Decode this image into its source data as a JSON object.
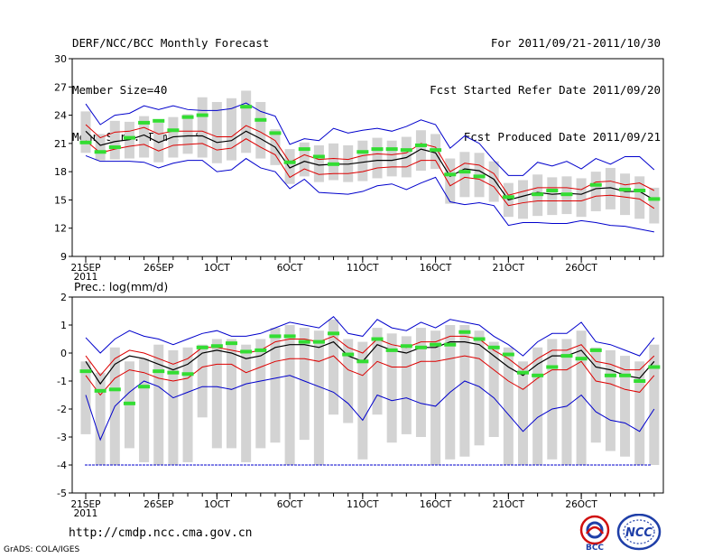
{
  "header": {
    "title": "DERF/NCC/BCC Monthly Forecast",
    "member_size": "Member Size=40",
    "variable": "Mean Surf. Temp.: °C",
    "forecast_period": "For 2011/09/21-2011/10/30",
    "started_refer_date": "Fcst Started Refer Date 2011/09/20",
    "produced_date": "Fcst Produced Date 2011/09/21"
  },
  "footer": {
    "url": "http://cmdp.ncc.cma.gov.cn",
    "grads_credit": "GrADS: COLA/IGES",
    "logo_left_text": "BCC",
    "logo_right_text": "NCC"
  },
  "colors": {
    "ensemble_max": "#0000cc",
    "ensemble_spread": "#dd0000",
    "ensemble_mean": "#000000",
    "observed": "#33dd33",
    "box": "#d3d3d3",
    "floor_line": "#0000cc"
  },
  "chart_data": [
    {
      "type": "line",
      "title": "Mean Surf. Temp.: °C",
      "ylabel": "°C",
      "ylim": [
        9,
        30
      ],
      "yticks": [
        9,
        12,
        15,
        18,
        21,
        24,
        27,
        30
      ],
      "xticks": [
        {
          "day": 1,
          "label": "21SEP",
          "sub": "2011"
        },
        {
          "day": 6,
          "label": "26SEP"
        },
        {
          "day": 10,
          "label": "1OCT"
        },
        {
          "day": 15,
          "label": "6OCT"
        },
        {
          "day": 20,
          "label": "11OCT"
        },
        {
          "day": 25,
          "label": "16OCT"
        },
        {
          "day": 30,
          "label": "21OCT"
        },
        {
          "day": 35,
          "label": "26OCT"
        }
      ],
      "days": [
        1,
        2,
        3,
        4,
        5,
        6,
        7,
        8,
        9,
        10,
        11,
        12,
        13,
        14,
        15,
        16,
        17,
        18,
        19,
        20,
        21,
        22,
        23,
        24,
        25,
        26,
        27,
        28,
        29,
        30,
        31,
        32,
        33,
        34,
        35,
        36,
        37,
        38,
        39,
        40
      ],
      "series": [
        {
          "name": "ensemble max",
          "role": "max",
          "values": [
            25.2,
            23.0,
            24.0,
            24.2,
            25.0,
            24.6,
            25.0,
            24.6,
            24.5,
            24.5,
            24.7,
            25.3,
            24.4,
            23.9,
            20.9,
            21.5,
            21.3,
            22.6,
            22.1,
            22.4,
            22.6,
            22.3,
            22.8,
            23.5,
            23.0,
            20.5,
            21.8,
            21.0,
            19.2,
            17.6,
            17.6,
            19.0,
            18.6,
            19.1,
            18.3,
            19.4,
            18.8,
            19.6,
            19.6,
            18.2
          ]
        },
        {
          "name": "upper spread",
          "role": "upper",
          "values": [
            23.0,
            21.6,
            22.2,
            22.3,
            22.7,
            22.0,
            22.3,
            22.3,
            22.3,
            21.7,
            21.7,
            22.9,
            22.2,
            21.3,
            19.0,
            19.8,
            19.3,
            19.4,
            19.3,
            19.7,
            19.9,
            19.8,
            20.0,
            21.0,
            20.6,
            18.0,
            18.9,
            18.7,
            17.8,
            15.5,
            15.9,
            16.3,
            16.3,
            16.3,
            16.1,
            16.9,
            17.0,
            16.6,
            16.8,
            16.0
          ]
        },
        {
          "name": "ensemble mean",
          "role": "mean",
          "values": [
            22.3,
            20.8,
            21.2,
            21.4,
            21.9,
            21.1,
            21.7,
            21.8,
            21.8,
            21.1,
            21.3,
            22.3,
            21.5,
            20.6,
            18.4,
            19.1,
            18.7,
            18.8,
            18.8,
            19.0,
            19.2,
            19.2,
            19.5,
            20.4,
            20.0,
            17.5,
            18.3,
            18.1,
            17.2,
            15.0,
            15.4,
            15.8,
            15.6,
            15.7,
            15.6,
            16.2,
            16.3,
            15.9,
            15.9,
            15.0
          ]
        },
        {
          "name": "lower spread",
          "role": "lower",
          "values": [
            21.3,
            20.0,
            20.4,
            20.7,
            20.9,
            20.2,
            20.8,
            20.9,
            21.0,
            20.3,
            20.5,
            21.5,
            20.6,
            19.8,
            17.4,
            18.3,
            17.7,
            17.8,
            17.8,
            18.0,
            18.4,
            18.5,
            18.5,
            19.2,
            19.2,
            16.5,
            17.4,
            17.2,
            16.4,
            14.4,
            14.7,
            14.9,
            14.9,
            14.9,
            14.9,
            15.4,
            15.5,
            15.3,
            15.1,
            14.1
          ]
        },
        {
          "name": "ensemble min",
          "role": "min",
          "values": [
            19.7,
            19.1,
            19.1,
            19.1,
            19.0,
            18.4,
            18.9,
            19.2,
            19.2,
            18.0,
            18.2,
            19.4,
            18.4,
            18.0,
            16.2,
            17.2,
            15.8,
            15.7,
            15.6,
            15.9,
            16.5,
            16.7,
            16.1,
            16.8,
            17.4,
            14.8,
            14.5,
            14.7,
            14.4,
            12.3,
            12.6,
            12.6,
            12.5,
            12.5,
            12.8,
            12.6,
            12.3,
            12.2,
            11.9,
            11.6
          ]
        }
      ],
      "boxes": {
        "lo": [
          20.0,
          19.2,
          19.3,
          19.4,
          19.5,
          19.0,
          19.5,
          19.9,
          19.5,
          18.9,
          19.2,
          20.0,
          19.4,
          18.7,
          16.7,
          17.5,
          16.9,
          17.1,
          16.9,
          17.0,
          17.3,
          17.5,
          17.4,
          18.1,
          18.3,
          14.6,
          15.3,
          15.3,
          14.8,
          13.2,
          13.0,
          13.3,
          13.4,
          13.5,
          13.2,
          13.8,
          14.0,
          13.4,
          13.0,
          12.5
        ],
        "hi": [
          24.4,
          22.0,
          23.4,
          23.3,
          23.9,
          23.2,
          23.8,
          24.1,
          25.9,
          25.4,
          25.8,
          26.6,
          25.4,
          22.5,
          20.4,
          21.1,
          20.8,
          21.0,
          20.8,
          21.3,
          21.6,
          21.3,
          21.7,
          22.4,
          22.0,
          19.4,
          20.1,
          20.0,
          19.1,
          16.8,
          17.1,
          17.7,
          17.4,
          17.5,
          17.3,
          18.0,
          18.4,
          17.8,
          17.5,
          16.3
        ]
      },
      "observed": [
        21.1,
        20.1,
        20.6,
        21.6,
        23.2,
        23.4,
        22.4,
        23.8,
        24.0,
        null,
        null,
        24.9,
        23.5,
        22.1,
        19.0,
        20.4,
        19.6,
        18.8,
        null,
        20.1,
        20.4,
        20.4,
        20.3,
        20.8,
        20.3,
        17.7,
        18.0,
        17.5,
        null,
        15.3,
        null,
        15.6,
        16.0,
        15.6,
        null,
        16.6,
        null,
        16.1,
        16.0,
        15.1
      ]
    },
    {
      "type": "line",
      "title": "Prec.: log(mm/d)",
      "ylabel": "log(mm/d)",
      "ylim": [
        -5,
        2
      ],
      "yticks": [
        -5,
        -4,
        -3,
        -2,
        -1,
        0,
        1,
        2
      ],
      "floor_value": -4,
      "xticks": [
        {
          "day": 1,
          "label": "21SEP",
          "sub": "2011"
        },
        {
          "day": 6,
          "label": "26SEP"
        },
        {
          "day": 10,
          "label": "1OCT"
        },
        {
          "day": 15,
          "label": "6OCT"
        },
        {
          "day": 20,
          "label": "11OCT"
        },
        {
          "day": 25,
          "label": "16OCT"
        },
        {
          "day": 30,
          "label": "21OCT"
        },
        {
          "day": 35,
          "label": "26OCT"
        }
      ],
      "days": [
        1,
        2,
        3,
        4,
        5,
        6,
        7,
        8,
        9,
        10,
        11,
        12,
        13,
        14,
        15,
        16,
        17,
        18,
        19,
        20,
        21,
        22,
        23,
        24,
        25,
        26,
        27,
        28,
        29,
        30,
        31,
        32,
        33,
        34,
        35,
        36,
        37,
        38,
        39,
        40
      ],
      "series": [
        {
          "name": "ensemble max",
          "role": "max",
          "values": [
            0.55,
            0.0,
            0.5,
            0.8,
            0.6,
            0.5,
            0.3,
            0.5,
            0.7,
            0.8,
            0.6,
            0.6,
            0.7,
            0.9,
            1.1,
            1.0,
            0.9,
            1.3,
            0.7,
            0.6,
            1.2,
            0.9,
            0.8,
            1.1,
            0.9,
            1.2,
            1.1,
            1.0,
            0.6,
            0.3,
            -0.1,
            0.4,
            0.7,
            0.7,
            1.1,
            0.4,
            0.3,
            0.1,
            -0.1,
            0.55
          ]
        },
        {
          "name": "upper spread",
          "role": "upper",
          "values": [
            -0.1,
            -0.8,
            -0.2,
            0.1,
            0.0,
            -0.2,
            -0.4,
            -0.2,
            0.2,
            0.2,
            0.1,
            0.0,
            0.1,
            0.4,
            0.5,
            0.5,
            0.4,
            0.6,
            0.2,
            0.0,
            0.5,
            0.3,
            0.2,
            0.4,
            0.4,
            0.6,
            0.6,
            0.5,
            0.1,
            -0.2,
            -0.6,
            -0.2,
            0.1,
            0.1,
            0.3,
            -0.3,
            -0.4,
            -0.6,
            -0.6,
            -0.1
          ]
        },
        {
          "name": "ensemble mean",
          "role": "mean",
          "values": [
            -0.3,
            -1.1,
            -0.4,
            -0.1,
            -0.2,
            -0.4,
            -0.6,
            -0.4,
            0.0,
            0.1,
            0.0,
            -0.2,
            -0.1,
            0.2,
            0.3,
            0.3,
            0.2,
            0.4,
            -0.1,
            -0.3,
            0.3,
            0.1,
            0.0,
            0.2,
            0.2,
            0.4,
            0.4,
            0.3,
            -0.1,
            -0.5,
            -0.8,
            -0.4,
            -0.1,
            -0.1,
            0.1,
            -0.5,
            -0.6,
            -0.8,
            -0.9,
            -0.3
          ]
        },
        {
          "name": "lower spread",
          "role": "lower",
          "values": [
            -0.8,
            -1.5,
            -0.9,
            -0.6,
            -0.7,
            -0.9,
            -1.0,
            -0.9,
            -0.5,
            -0.4,
            -0.4,
            -0.7,
            -0.5,
            -0.3,
            -0.2,
            -0.2,
            -0.3,
            -0.1,
            -0.6,
            -0.8,
            -0.3,
            -0.5,
            -0.5,
            -0.3,
            -0.3,
            -0.2,
            -0.1,
            -0.2,
            -0.6,
            -1.0,
            -1.3,
            -0.9,
            -0.6,
            -0.6,
            -0.3,
            -1.0,
            -1.1,
            -1.3,
            -1.4,
            -0.8
          ]
        },
        {
          "name": "ensemble min",
          "role": "min",
          "values": [
            -1.5,
            -3.1,
            -1.9,
            -1.4,
            -1.0,
            -1.2,
            -1.6,
            -1.4,
            -1.2,
            -1.2,
            -1.3,
            -1.1,
            -1.0,
            -0.9,
            -0.8,
            -1.0,
            -1.2,
            -1.4,
            -1.8,
            -2.4,
            -1.5,
            -1.7,
            -1.6,
            -1.8,
            -1.9,
            -1.4,
            -1.0,
            -1.2,
            -1.6,
            -2.2,
            -2.8,
            -2.3,
            -2.0,
            -1.9,
            -1.5,
            -2.1,
            -2.4,
            -2.5,
            -2.8,
            -2.0
          ]
        }
      ],
      "boxes": {
        "lo": [
          -2.9,
          -4.0,
          -4.0,
          -3.4,
          -3.9,
          -4.0,
          -4.0,
          -3.9,
          -2.3,
          -3.4,
          -3.4,
          -3.9,
          -3.4,
          -3.2,
          -4.0,
          -3.1,
          -4.0,
          -2.2,
          -2.5,
          -3.8,
          -2.2,
          -3.2,
          -2.9,
          -3.0,
          -4.0,
          -3.8,
          -3.7,
          -3.3,
          -3.0,
          -4.0,
          -4.0,
          -4.0,
          -3.8,
          -4.0,
          -4.0,
          -3.2,
          -3.5,
          -3.7,
          -4.0,
          -4.0
        ],
        "hi": [
          -0.3,
          -0.7,
          0.2,
          -0.3,
          -0.2,
          0.3,
          0.1,
          0.2,
          0.3,
          0.5,
          0.5,
          0.3,
          0.5,
          0.9,
          1.0,
          0.9,
          0.8,
          1.2,
          0.5,
          0.4,
          0.9,
          0.7,
          0.6,
          0.9,
          0.8,
          1.0,
          1.0,
          0.8,
          0.4,
          0.2,
          -0.3,
          0.2,
          0.5,
          0.5,
          0.8,
          0.2,
          0.1,
          -0.1,
          -0.3,
          0.3
        ]
      },
      "observed": [
        -0.65,
        -1.35,
        -1.3,
        -1.8,
        -1.2,
        -0.65,
        -0.7,
        -0.75,
        0.2,
        0.25,
        0.35,
        0.05,
        0.1,
        0.6,
        0.6,
        0.4,
        0.4,
        0.7,
        -0.05,
        -0.3,
        0.5,
        0.1,
        0.25,
        0.2,
        0.3,
        0.3,
        0.75,
        0.5,
        0.2,
        -0.05,
        -0.7,
        -0.8,
        -0.5,
        -0.1,
        -0.2,
        0.1,
        -0.8,
        -0.8,
        -1.0,
        -0.5
      ]
    }
  ]
}
